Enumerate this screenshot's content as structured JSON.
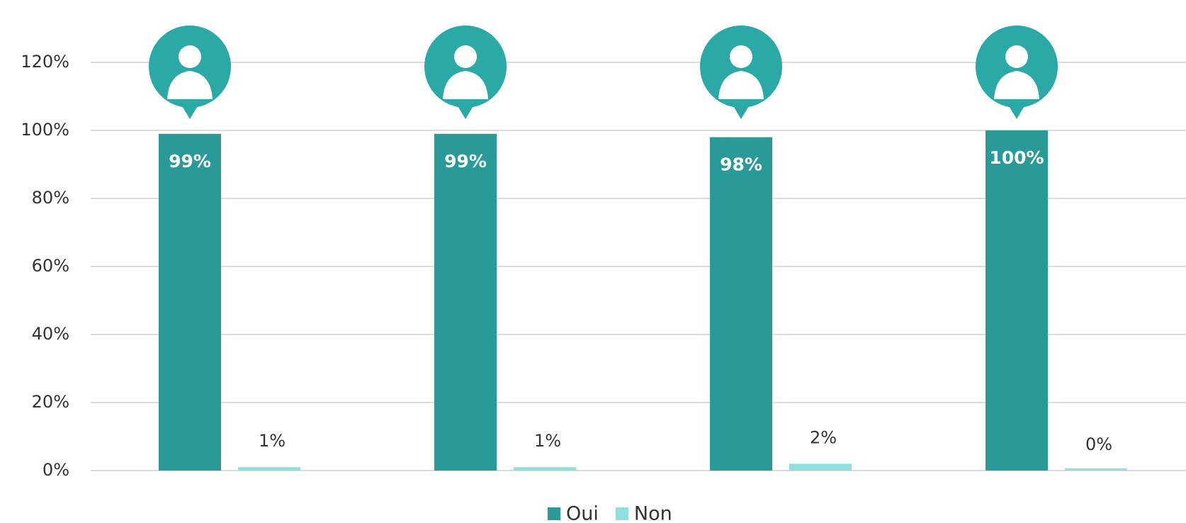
{
  "chart_data": {
    "type": "bar",
    "categories": [
      null,
      null,
      null,
      null
    ],
    "series": [
      {
        "name": "Oui",
        "color": "#2a9a98",
        "values": [
          99,
          99,
          98,
          100
        ],
        "value_labels": [
          "99%",
          "99%",
          "98%",
          "100%"
        ]
      },
      {
        "name": "Non",
        "color": "#8ee0e0",
        "values": [
          1,
          1,
          2,
          0
        ],
        "value_labels": [
          "1%",
          "1%",
          "2%",
          "0%"
        ]
      }
    ],
    "ylim": [
      0,
      120
    ],
    "yticks": [
      {
        "value": 0,
        "label": "0%"
      },
      {
        "value": 20,
        "label": "20%"
      },
      {
        "value": 40,
        "label": "40%"
      },
      {
        "value": 60,
        "label": "60%"
      },
      {
        "value": 80,
        "label": "80%"
      },
      {
        "value": 100,
        "label": "100%"
      },
      {
        "value": 120,
        "label": "120%"
      }
    ],
    "grid": true,
    "legend": "bottom"
  }
}
